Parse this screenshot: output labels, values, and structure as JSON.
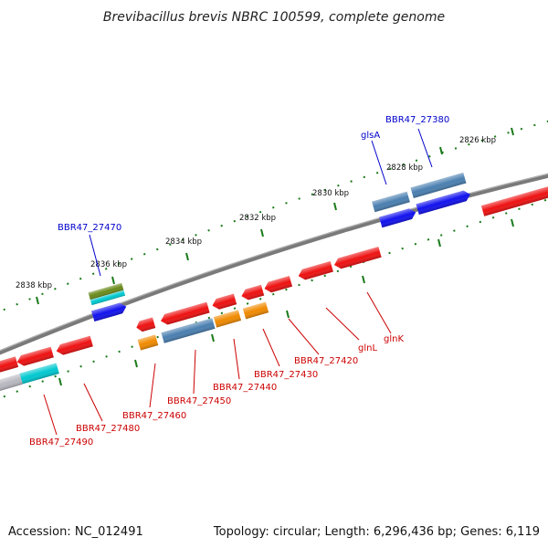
{
  "title": "Brevibacillus brevis NBRC 100599, complete genome",
  "footer": {
    "accession": "Accession: NC_012491",
    "info": "Topology: circular; Length: 6,296,436 bp; Genes: 6,119"
  },
  "colors": {
    "backbone": "#7a7a7a",
    "tick": "#1a7a1a",
    "label_forward": "#0000cc",
    "label_reverse": "#cc0000",
    "gene_red": "#ee1111",
    "gene_blue": "#1111ee",
    "gene_steel": "#4a7fb0",
    "gene_orange": "#f08a00",
    "gene_cyan": "#00c8d0",
    "gene_olive": "#6a8a1a",
    "gene_gray": "#b8b8c0"
  },
  "scale": {
    "labels": [
      "2826 kbp",
      "2828 kbp",
      "2830 kbp",
      "2832 kbp",
      "2834 kbp",
      "2836 kbp",
      "2838 kbp"
    ]
  },
  "forward_labels": [
    "BBR47_27380",
    "glsA",
    "BBR47_27470"
  ],
  "reverse_labels": [
    "glnK",
    "glnL",
    "BBR47_27420",
    "BBR47_27430",
    "BBR47_27440",
    "BBR47_27450",
    "BBR47_27460",
    "BBR47_27480",
    "BBR47_27490"
  ]
}
